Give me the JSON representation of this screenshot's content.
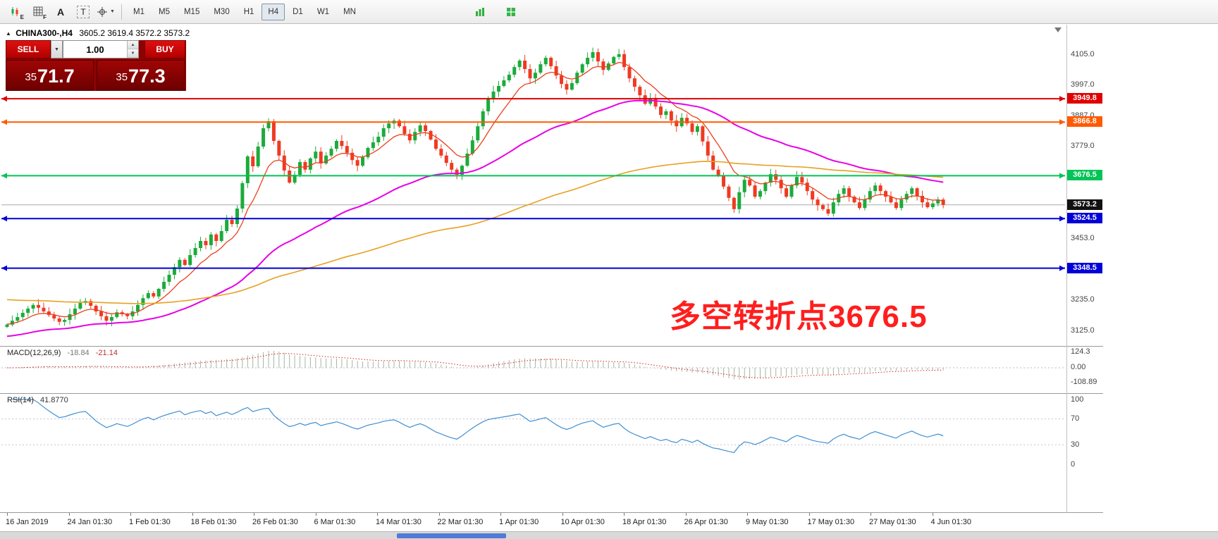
{
  "toolbar": {
    "icon_candles_sub": "E",
    "icon_grid_sub": "F",
    "tool_a": "A",
    "tool_t": "T",
    "timeframes": [
      "M1",
      "M5",
      "M15",
      "M30",
      "H1",
      "H4",
      "D1",
      "W1",
      "MN"
    ],
    "active_timeframe": "H4"
  },
  "glyphs": {
    "collapse": "▲",
    "caret_down": "▼",
    "spin_up": "▲",
    "spin_down": "▼"
  },
  "symbol_line": {
    "symbol": "CHINA300-,H4",
    "ohlc": "3605.2 3619.4 3572.2 3573.2"
  },
  "trade_panel": {
    "sell_label": "SELL",
    "buy_label": "BUY",
    "volume": "1.00",
    "sell_prefix": "35",
    "sell_big": "71",
    "sell_frac": ".7",
    "buy_prefix": "35",
    "buy_big": "77",
    "buy_frac": ".3"
  },
  "annotation": {
    "text": "多空转折点3676.5",
    "color": "#ff1e1e"
  },
  "macd": {
    "title": "MACD(12,26,9)",
    "value_main": "-18.84",
    "value_signal": "-21.14",
    "axis": [
      "124.3",
      "0.00",
      "-108.89"
    ]
  },
  "rsi": {
    "title": "RSI(14)",
    "value": "41.8770",
    "axis": [
      "100",
      "70",
      "30",
      "0"
    ]
  },
  "dates": [
    "16 Jan 2019",
    "24 Jan 01:30",
    "1 Feb 01:30",
    "18 Feb 01:30",
    "26 Feb 01:30",
    "6 Mar 01:30",
    "14 Mar 01:30",
    "22 Mar 01:30",
    "1 Apr 01:30",
    "10 Apr 01:30",
    "18 Apr 01:30",
    "26 Apr 01:30",
    "9 May 01:30",
    "17 May 01:30",
    "27 May 01:30",
    "4 Jun 01:30"
  ],
  "chart_data": {
    "type": "candlestick",
    "symbol": "CHINA300-",
    "timeframe": "H4",
    "first_open": 3140,
    "closes": [
      3148,
      3162,
      3175,
      3190,
      3205,
      3218,
      3208,
      3195,
      3182,
      3170,
      3158,
      3165,
      3185,
      3205,
      3225,
      3232,
      3215,
      3195,
      3178,
      3162,
      3175,
      3192,
      3185,
      3178,
      3195,
      3218,
      3242,
      3260,
      3248,
      3275,
      3300,
      3325,
      3352,
      3378,
      3360,
      3395,
      3420,
      3445,
      3430,
      3468,
      3445,
      3480,
      3520,
      3505,
      3560,
      3650,
      3745,
      3710,
      3780,
      3845,
      3870,
      3800,
      3748,
      3695,
      3652,
      3680,
      3725,
      3698,
      3738,
      3762,
      3720,
      3748,
      3772,
      3800,
      3782,
      3758,
      3732,
      3712,
      3742,
      3775,
      3795,
      3815,
      3845,
      3862,
      3872,
      3852,
      3825,
      3802,
      3832,
      3855,
      3835,
      3805,
      3772,
      3748,
      3722,
      3698,
      3680,
      3712,
      3755,
      3802,
      3852,
      3905,
      3952,
      3975,
      3995,
      4015,
      4035,
      4062,
      4085,
      4055,
      4022,
      4042,
      4072,
      4095,
      4065,
      4032,
      4002,
      3982,
      4005,
      4042,
      4072,
      4095,
      4115,
      4082,
      4052,
      4075,
      4098,
      4108,
      4062,
      4022,
      3992,
      3962,
      3932,
      3952,
      3922,
      3892,
      3905,
      3872,
      3852,
      3882,
      3862,
      3832,
      3852,
      3798,
      3748,
      3698,
      3678,
      3638,
      3598,
      3558,
      3618,
      3662,
      3642,
      3602,
      3622,
      3652,
      3682,
      3662,
      3632,
      3602,
      3642,
      3672,
      3652,
      3622,
      3592,
      3572,
      3558,
      3542,
      3582,
      3612,
      3632,
      3602,
      3582,
      3562,
      3592,
      3622,
      3642,
      3622,
      3602,
      3582,
      3562,
      3592,
      3612,
      3632,
      3605,
      3582,
      3565,
      3578,
      3592,
      3573.2
    ],
    "price_range": [
      3100,
      4150
    ],
    "axis_labels": [
      {
        "price": 4105.0,
        "label": "4105.0"
      },
      {
        "price": 3997.0,
        "label": "3997.0"
      },
      {
        "price": 3887.0,
        "label": "3887.0"
      },
      {
        "price": 3779.0,
        "label": "3779.0"
      },
      {
        "price": 3453.0,
        "label": "3453.0"
      },
      {
        "price": 3235.0,
        "label": "3235.0"
      },
      {
        "price": 3125.0,
        "label": "3125.0"
      }
    ],
    "levels": [
      {
        "price": 3949.8,
        "label": "3949.8",
        "color": "#e00000"
      },
      {
        "price": 3866.8,
        "label": "3866.8",
        "color": "#ff5a00"
      },
      {
        "price": 3676.5,
        "label": "3676.5",
        "color": "#00c455"
      },
      {
        "price": 3524.5,
        "label": "3524.5",
        "color": "#0000d8"
      },
      {
        "price": 3348.5,
        "label": "3348.5",
        "color": "#0000d8"
      }
    ],
    "current_price": {
      "price": 3573.2,
      "label": "3573.2",
      "color": "#111111"
    },
    "moving_averages": [
      {
        "name": "fast",
        "period": 9,
        "seed": 3150,
        "color": "#e8401c",
        "width": 1.3
      },
      {
        "name": "medium",
        "period": 50,
        "seed": 3105,
        "color": "#e800e8",
        "width": 2
      },
      {
        "name": "slow",
        "period": 140,
        "seed": 3238,
        "color": "#e8a020",
        "width": 1.6
      }
    ],
    "up_color": "#1cab3c",
    "down_color": "#ef3a22",
    "macd_params": [
      12,
      26,
      9
    ],
    "macd_hist_color": "#a3b6a3",
    "macd_signal_color": "#e02222",
    "rsi_period": 14,
    "rsi_color": "#3f8fd2",
    "rsi_levels": [
      70,
      30
    ],
    "level_dash_color": "#c4c4d4"
  }
}
